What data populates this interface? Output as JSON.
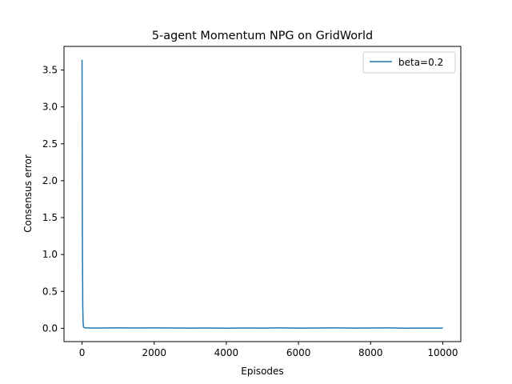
{
  "chart_data": {
    "type": "line",
    "title": "5-agent Momentum NPG on GridWorld",
    "xlabel": "Episodes",
    "ylabel": "Consensus error",
    "xlim": [
      -500,
      10500
    ],
    "ylim": [
      -0.18,
      3.82
    ],
    "xticks": [
      0,
      2000,
      4000,
      6000,
      8000,
      10000
    ],
    "xtick_labels": [
      "0",
      "2000",
      "4000",
      "6000",
      "8000",
      "10000"
    ],
    "yticks": [
      0.0,
      0.5,
      1.0,
      1.5,
      2.0,
      2.5,
      3.0,
      3.5
    ],
    "ytick_labels": [
      "0.0",
      "0.5",
      "1.0",
      "1.5",
      "2.0",
      "2.5",
      "3.0",
      "3.5"
    ],
    "grid": false,
    "legend": "top-right",
    "series": [
      {
        "name": "beta=0.2",
        "color": "#1f77b4",
        "x": [
          0,
          5,
          10,
          20,
          30,
          40,
          60,
          100,
          200,
          500,
          1000,
          1500,
          2000,
          2500,
          3000,
          3500,
          4000,
          4500,
          5000,
          5500,
          6000,
          6500,
          7000,
          7500,
          8000,
          8500,
          9000,
          9500,
          10000
        ],
        "y": [
          3.64,
          2.5,
          1.2,
          0.3,
          0.08,
          0.02,
          0.01,
          0.005,
          0.004,
          0.004,
          0.005,
          0.004,
          0.006,
          0.004,
          0.003,
          0.004,
          0.002,
          0.004,
          0.003,
          0.005,
          0.003,
          0.004,
          0.005,
          0.003,
          0.004,
          0.005,
          0.002,
          0.003,
          0.003
        ]
      }
    ]
  }
}
